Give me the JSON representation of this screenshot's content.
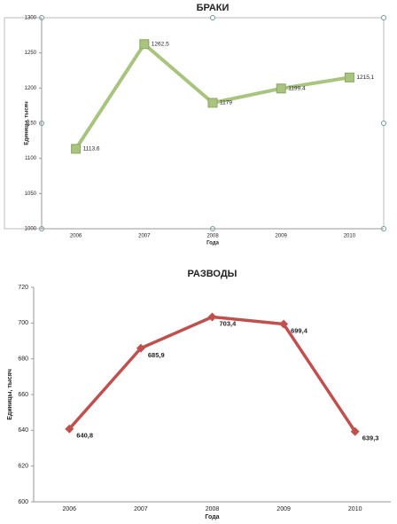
{
  "chart_data": [
    {
      "type": "line",
      "title": "БРАКИ",
      "x_label": "Года",
      "y_label": "Единицы, тысяч",
      "categories": [
        "2006",
        "2007",
        "2008",
        "2009",
        "2010"
      ],
      "series": [
        {
          "name": "Браки",
          "color": "#a9c47f",
          "marker": "square",
          "values": [
            1113.6,
            1262.5,
            1179,
            1199.4,
            1215.1
          ],
          "value_labels": [
            "1113,6",
            "1262,5",
            "1179",
            "1199,4",
            "1215,1"
          ]
        }
      ],
      "ylim": [
        1000,
        1300
      ],
      "yticks": [
        1000,
        1050,
        1100,
        1150,
        1200,
        1250,
        1300
      ]
    },
    {
      "type": "line",
      "title": "РАЗВОДЫ",
      "x_label": "Года",
      "y_label": "Единицы, тысяч",
      "categories": [
        "2006",
        "2007",
        "2008",
        "2009",
        "2010"
      ],
      "series": [
        {
          "name": "Разводы",
          "color": "#c0504d",
          "marker": "diamond",
          "values": [
            640.8,
            685.9,
            703.4,
            699.4,
            639.3
          ],
          "value_labels": [
            "640,8",
            "685,9",
            "703,4",
            "699,4",
            "639,3"
          ]
        }
      ],
      "ylim": [
        600,
        720
      ],
      "yticks": [
        600,
        620,
        640,
        660,
        680,
        700,
        720
      ]
    }
  ]
}
